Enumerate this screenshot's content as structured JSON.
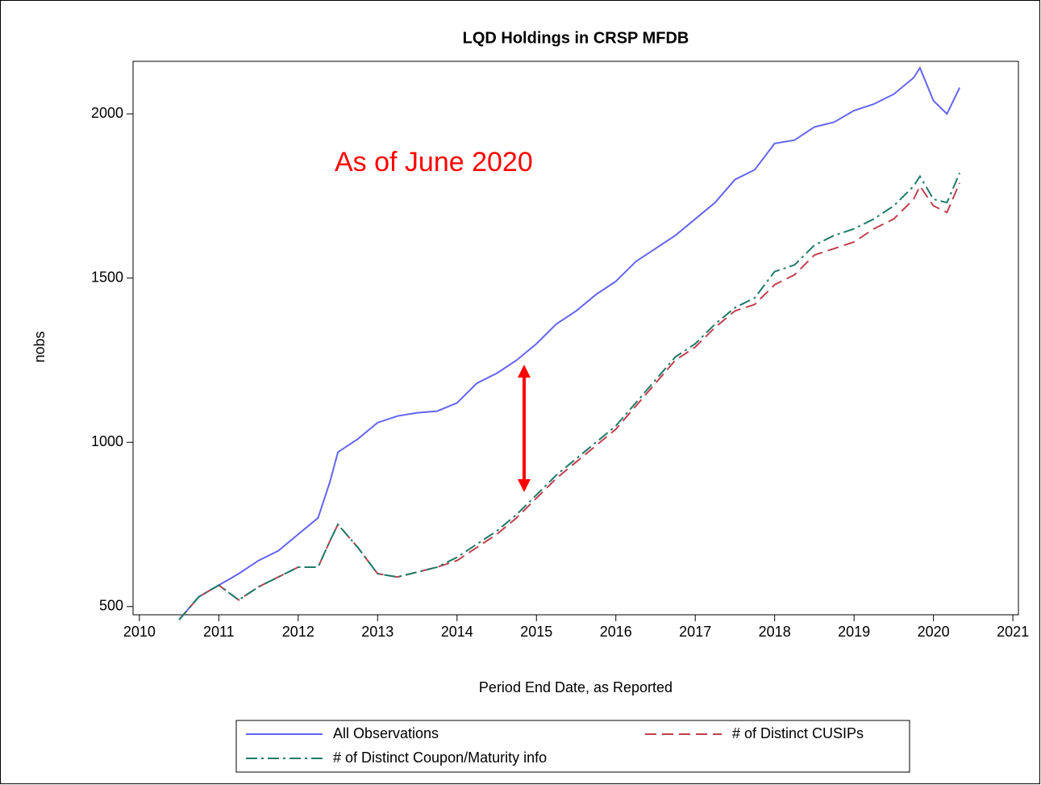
{
  "chart_data": {
    "type": "line",
    "title": "LQD Holdings in CRSP MFDB",
    "annotation": "As of June 2020",
    "xlabel": "Period End Date, as Reported",
    "ylabel": "nobs",
    "x": [
      2010.5,
      2010.75,
      2011.0,
      2011.25,
      2011.5,
      2011.75,
      2012.0,
      2012.25,
      2012.4,
      2012.5,
      2012.75,
      2013.0,
      2013.25,
      2013.5,
      2013.75,
      2014.0,
      2014.25,
      2014.5,
      2014.75,
      2015.0,
      2015.25,
      2015.5,
      2015.75,
      2016.0,
      2016.25,
      2016.5,
      2016.75,
      2017.0,
      2017.25,
      2017.5,
      2017.75,
      2018.0,
      2018.25,
      2018.5,
      2018.75,
      2019.0,
      2019.25,
      2019.5,
      2019.75,
      2019.83,
      2020.0,
      2020.17,
      2020.33
    ],
    "series": [
      {
        "name": "All Observations",
        "color": "#6464f0",
        "dash": "none",
        "values": [
          460,
          530,
          565,
          600,
          640,
          670,
          720,
          770,
          880,
          970,
          1010,
          1060,
          1080,
          1090,
          1095,
          1120,
          1180,
          1210,
          1250,
          1300,
          1360,
          1400,
          1450,
          1490,
          1550,
          1590,
          1630,
          1680,
          1730,
          1800,
          1830,
          1910,
          1920,
          1960,
          1975,
          2010,
          2030,
          2060,
          2110,
          2140,
          2040,
          2000,
          2080
        ]
      },
      {
        "name": "# of Distinct CUSIPs",
        "color": "#c0404f",
        "dash": "14 7",
        "values": [
          460,
          530,
          565,
          520,
          560,
          590,
          620,
          620,
          700,
          750,
          680,
          600,
          590,
          605,
          620,
          640,
          680,
          720,
          770,
          830,
          890,
          940,
          990,
          1040,
          1110,
          1180,
          1250,
          1290,
          1350,
          1400,
          1420,
          1480,
          1510,
          1570,
          1590,
          1610,
          1650,
          1680,
          1740,
          1780,
          1720,
          1700,
          1790
        ]
      },
      {
        "name": "# of Distinct Coupon/Maturity info",
        "color": "#1e7a68",
        "dash": "14 5 3 5",
        "values": [
          460,
          530,
          565,
          520,
          560,
          590,
          620,
          620,
          700,
          750,
          680,
          600,
          590,
          605,
          620,
          650,
          690,
          730,
          780,
          840,
          900,
          950,
          1000,
          1050,
          1120,
          1190,
          1260,
          1300,
          1360,
          1410,
          1440,
          1520,
          1540,
          1600,
          1630,
          1650,
          1680,
          1720,
          1780,
          1810,
          1740,
          1730,
          1820
        ]
      }
    ],
    "xlim": [
      2009.92,
      2021.07
    ],
    "xticks": [
      2010,
      2011,
      2012,
      2013,
      2014,
      2015,
      2016,
      2017,
      2018,
      2019,
      2020,
      2021
    ],
    "ylim": [
      475,
      2160
    ],
    "yticks": [
      500,
      1000,
      1500,
      2000
    ],
    "grid": false,
    "legend": "bottom"
  }
}
